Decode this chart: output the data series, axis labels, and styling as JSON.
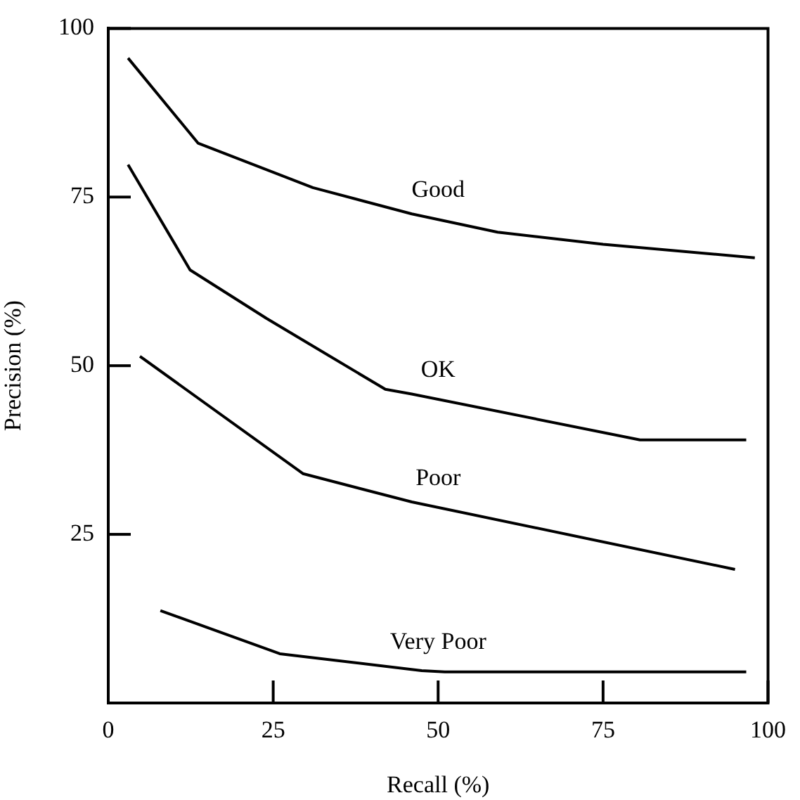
{
  "chart_data": {
    "type": "line",
    "xlabel": "Recall (%)",
    "ylabel": "Precision (%)",
    "xlim": [
      0,
      100
    ],
    "ylim": [
      0,
      100
    ],
    "xticks": [
      0,
      25,
      50,
      75,
      100
    ],
    "yticks": [
      {
        "value": 0,
        "label": null
      },
      25,
      50,
      75,
      100
    ],
    "grid": false,
    "legend": false,
    "marker": "none",
    "line_style": "solid",
    "series": [
      {
        "name": "Good",
        "color": "#000000",
        "x": [
          3,
          13.6,
          31,
          46,
          59,
          75,
          98
        ],
        "values": [
          95.6,
          83,
          76.4,
          72.5,
          69.8,
          68,
          66
        ]
      },
      {
        "name": "OK",
        "color": "#000000",
        "x": [
          3,
          12.4,
          24,
          42,
          46,
          80.6,
          96.7
        ],
        "values": [
          79.8,
          64.2,
          57,
          46.5,
          45.8,
          39,
          39
        ]
      },
      {
        "name": "Poor",
        "color": "#000000",
        "x": [
          4.8,
          29.5,
          46,
          95
        ],
        "values": [
          51.4,
          34,
          29.8,
          19.8
        ]
      },
      {
        "name": "Very Poor",
        "color": "#000000",
        "x": [
          7.9,
          26,
          47.5,
          51,
          96.7
        ],
        "values": [
          13.7,
          7.3,
          4.8,
          4.6,
          4.6
        ]
      }
    ]
  }
}
